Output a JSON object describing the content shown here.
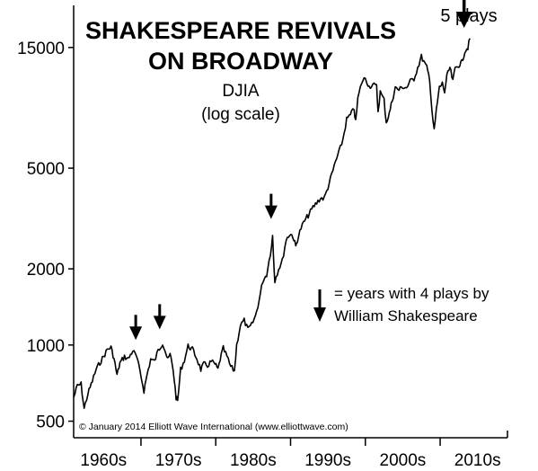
{
  "chart_data": {
    "type": "line",
    "title_lines": [
      "SHAKESPEARE REVIVALS",
      "ON BROADWAY"
    ],
    "subtitle": "DJIA",
    "scale_note": "(log scale)",
    "y_scale": "log",
    "ylim": [
      430,
      22000
    ],
    "xlim": [
      1961,
      2019
    ],
    "y_ticks": [
      {
        "value": 500,
        "label": "500"
      },
      {
        "value": 1000,
        "label": "1000"
      },
      {
        "value": 2000,
        "label": "2000"
      },
      {
        "value": 5000,
        "label": "5000"
      },
      {
        "value": 15000,
        "label": "15000"
      }
    ],
    "x_decade_labels": [
      {
        "center": 1965,
        "label": "1960s"
      },
      {
        "center": 1975,
        "label": "1970s"
      },
      {
        "center": 1985,
        "label": "1980s"
      },
      {
        "center": 1995,
        "label": "1990s"
      },
      {
        "center": 2005,
        "label": "2000s"
      },
      {
        "center": 2015,
        "label": "2010s"
      }
    ],
    "x_ticks": [
      1970,
      1980,
      1990,
      2000,
      2010
    ],
    "series": [
      {
        "x": [
          1961.0,
          1961.5,
          1962.0,
          1962.4,
          1962.9,
          1963.5,
          1964.0,
          1964.5,
          1965.0,
          1965.5,
          1966.0,
          1966.4,
          1966.8,
          1967.2,
          1967.8,
          1968.3,
          1968.9,
          1969.4,
          1969.9,
          1970.4,
          1970.8,
          1971.3,
          1971.8,
          1972.3,
          1972.9,
          1973.2,
          1973.6,
          1973.9,
          1974.3,
          1974.7,
          1974.9,
          1975.3,
          1975.8,
          1976.3,
          1976.9,
          1977.5,
          1978.0,
          1978.4,
          1978.9,
          1979.4,
          1979.9,
          1980.3,
          1980.6,
          1981.0,
          1981.5,
          1982.0,
          1982.5,
          1982.8,
          1983.3,
          1983.8,
          1984.3,
          1984.8,
          1985.3,
          1985.8,
          1986.3,
          1986.8,
          1987.3,
          1987.6,
          1987.8,
          1987.9,
          1988.4,
          1988.9,
          1989.4,
          1989.9,
          1990.3,
          1990.7,
          1990.9,
          1991.4,
          1991.9,
          1992.5,
          1993.0,
          1993.5,
          1994.0,
          1994.5,
          1995.0,
          1995.5,
          1996.0,
          1996.5,
          1997.0,
          1997.5,
          1998.0,
          1998.5,
          1998.7,
          1999.0,
          1999.5,
          2000.0,
          2000.5,
          2001.0,
          2001.5,
          2001.7,
          2002.0,
          2002.5,
          2002.8,
          2003.2,
          2003.6,
          2004.0,
          2004.5,
          2005.0,
          2005.5,
          2006.0,
          2006.5,
          2007.0,
          2007.5,
          2007.8,
          2008.2,
          2008.6,
          2008.9,
          2009.2,
          2009.5,
          2009.9,
          2010.3,
          2010.6,
          2010.9,
          2011.3,
          2011.7,
          2012.0,
          2012.5,
          2012.9,
          2013.3,
          2013.7,
          2013.99
        ],
        "y": [
          620,
          690,
          700,
          560,
          640,
          720,
          800,
          850,
          900,
          960,
          980,
          880,
          760,
          850,
          900,
          880,
          950,
          900,
          780,
          660,
          760,
          880,
          860,
          950,
          1020,
          960,
          870,
          920,
          800,
          620,
          600,
          800,
          870,
          990,
          960,
          880,
          800,
          840,
          830,
          860,
          840,
          800,
          880,
          970,
          900,
          820,
          790,
          1000,
          1200,
          1250,
          1150,
          1200,
          1300,
          1500,
          1800,
          1900,
          2300,
          2700,
          2000,
          1800,
          2000,
          2150,
          2600,
          2750,
          2700,
          2450,
          2600,
          2900,
          3100,
          3300,
          3500,
          3650,
          3800,
          3800,
          4200,
          4700,
          5300,
          5800,
          6500,
          7800,
          8100,
          8600,
          7600,
          9400,
          10900,
          11400,
          10500,
          10700,
          10500,
          8400,
          10000,
          9300,
          7600,
          8200,
          9300,
          10400,
          10200,
          10500,
          10400,
          11000,
          11300,
          12500,
          13800,
          13200,
          12500,
          11300,
          8500,
          7000,
          8500,
          10400,
          10800,
          10000,
          11500,
          12500,
          11000,
          12400,
          12800,
          13100,
          14500,
          15000,
          16300
        ]
      }
    ],
    "markers": [
      {
        "x": 1969.3,
        "y": 980
      },
      {
        "x": 1972.5,
        "y": 1080
      },
      {
        "x": 1987.4,
        "y": 2950
      },
      {
        "x": 2013.2,
        "y": 16800
      }
    ],
    "annotations": {
      "five_plays": "5 plays",
      "legend_line1": "= years with 4 plays by",
      "legend_line2": "William Shakespeare"
    },
    "credit": "© January 2014 Elliott Wave International (www.elliottwave.com)",
    "grid": false
  }
}
